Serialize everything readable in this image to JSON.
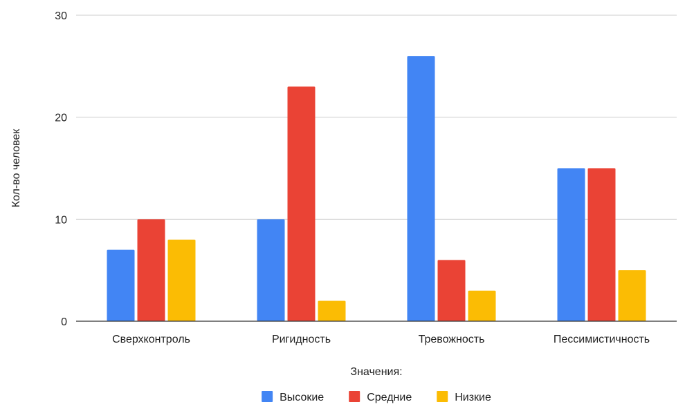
{
  "chart_data": {
    "type": "bar",
    "categories": [
      "Сверхконтроль",
      "Ригидность",
      "Тревожность",
      "Пессимистичность"
    ],
    "series": [
      {
        "name": "Высокие",
        "color": "#4285F4",
        "values": [
          7,
          10,
          26,
          15
        ]
      },
      {
        "name": "Средние",
        "color": "#EA4335",
        "values": [
          10,
          23,
          6,
          15
        ]
      },
      {
        "name": "Низкие",
        "color": "#FBBC04",
        "values": [
          8,
          2,
          3,
          5
        ]
      }
    ],
    "title": "",
    "xlabel": "Значения:",
    "ylabel": "Кол-во человек",
    "ylim": [
      0,
      30
    ],
    "yticks": [
      0,
      10,
      20,
      30
    ],
    "grid": true,
    "legend_position": "bottom"
  }
}
